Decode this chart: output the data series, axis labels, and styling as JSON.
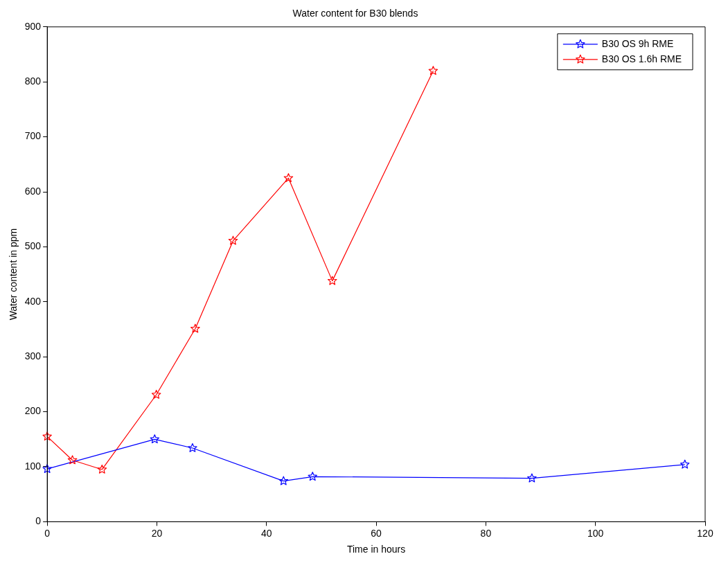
{
  "chart_data": {
    "type": "line",
    "title": "Water content for B30 blends",
    "xlabel": "Time in hours",
    "ylabel": "Water content in ppm",
    "xlim": [
      0,
      120
    ],
    "xticks": [
      0,
      20,
      40,
      60,
      80,
      100,
      120
    ],
    "ylim": [
      0,
      900
    ],
    "yticks": [
      0,
      100,
      200,
      300,
      400,
      500,
      600,
      700,
      800,
      900
    ],
    "grid": false,
    "legend": "top right",
    "marker": "star",
    "line_style": "solid",
    "series": [
      {
        "name": "B30 OS 9h RME",
        "color": "#0000ff",
        "x": [
          0,
          19.6,
          26.5,
          43.1,
          48.4,
          88.4,
          116.3
        ],
        "values": [
          96,
          150,
          134,
          74,
          82,
          79,
          104
        ]
      },
      {
        "name": "B30 OS 1.6h RME",
        "color": "#ff0000",
        "x": [
          0,
          4.6,
          10,
          19.9,
          27,
          33.9,
          44,
          52,
          70.4
        ],
        "values": [
          155,
          112,
          95,
          231,
          351,
          511,
          625,
          438,
          820
        ]
      }
    ]
  }
}
